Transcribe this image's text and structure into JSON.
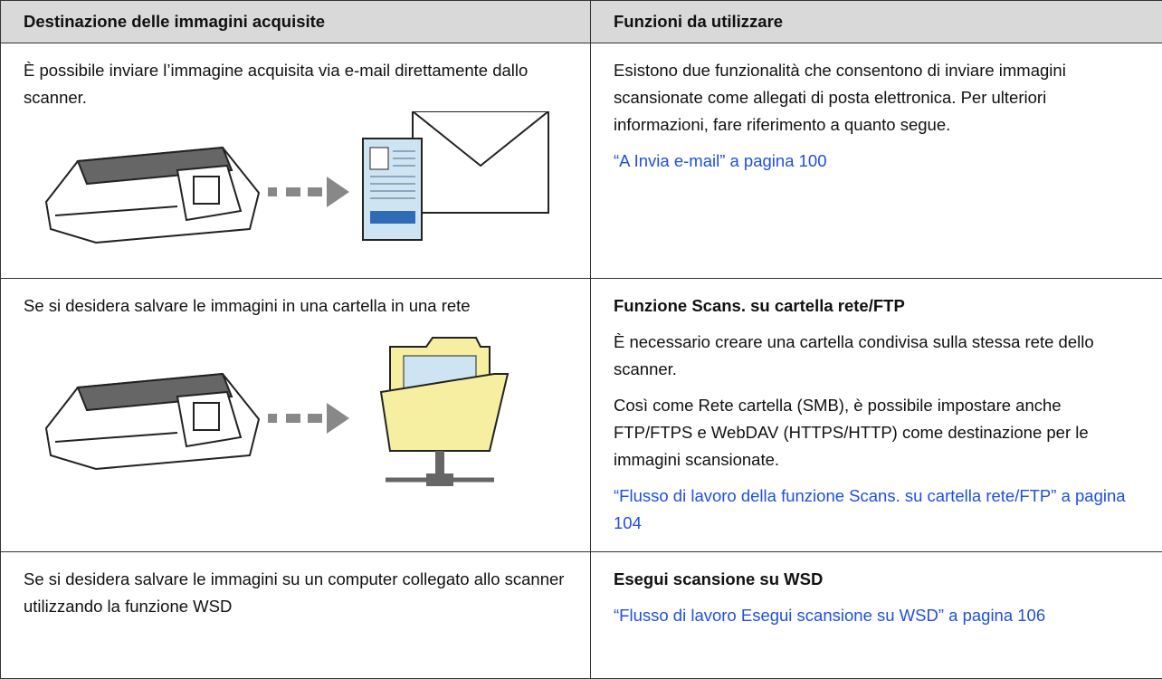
{
  "table": {
    "header": [
      "Destinazione delle immagini acquisite",
      "Funzioni da utilizzare"
    ],
    "rows": [
      {
        "left": "È possibile inviare l’immagine acquisita via e-mail direttamente dallo scanner.",
        "paragraphs": [
          "Esistono due funzionalità che consentono di inviare immagini scansionate come allegati di posta elettronica. Per ulteriori informazioni, fare riferimento a quanto segue."
        ],
        "link": "“A Invia e-mail” a pagina 100"
      },
      {
        "left": "Se si desidera salvare le immagini in una cartella in una rete",
        "heading": "Funzione Scans. su cartella rete/FTP",
        "paragraphs": [
          "È necessario creare una cartella condivisa sulla stessa rete dello scanner.",
          "Così come Rete cartella (SMB), è possibile impostare anche FTP/FTPS e WebDAV (HTTPS/HTTP) come destinazione per le immagini scansionate."
        ],
        "link": "“Flusso di lavoro della funzione Scans. su cartella rete/FTP” a pagina 104"
      },
      {
        "left": "Se si desidera salvare le immagini su un computer collegato allo scanner utilizzando la funzione WSD",
        "heading": "Esegui scansione su WSD",
        "link": "“Flusso di lavoro Esegui scansione su WSD” a pagina 106"
      }
    ]
  }
}
